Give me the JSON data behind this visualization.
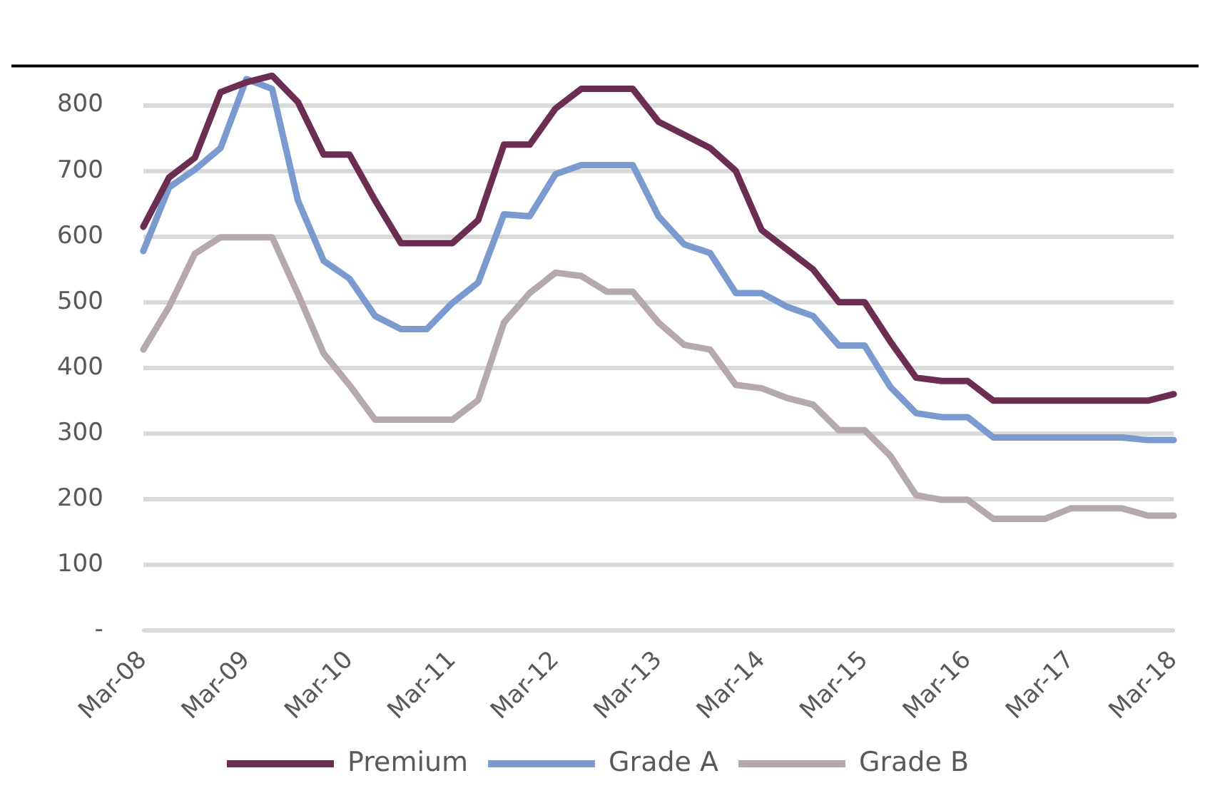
{
  "chart_data": {
    "type": "line",
    "categories": [
      "Mar-08",
      null,
      null,
      null,
      "Mar-09",
      null,
      null,
      null,
      "Mar-10",
      null,
      null,
      null,
      "Mar-11",
      null,
      null,
      null,
      "Mar-12",
      null,
      null,
      null,
      "Mar-13",
      null,
      null,
      null,
      "Mar-14",
      null,
      null,
      null,
      "Mar-15",
      null,
      null,
      null,
      "Mar-16",
      null,
      null,
      null,
      "Mar-17",
      null,
      null,
      null,
      "Mar-18"
    ],
    "series": [
      {
        "name": "Premium",
        "color": "#6b2d52",
        "values": [
          615,
          690,
          720,
          820,
          835,
          845,
          805,
          725,
          725,
          655,
          590,
          590,
          590,
          625,
          740,
          740,
          795,
          825,
          825,
          825,
          775,
          755,
          735,
          700,
          610,
          580,
          550,
          500,
          500,
          440,
          385,
          380,
          380,
          350,
          350,
          350,
          350,
          350,
          350,
          350,
          360
        ]
      },
      {
        "name": "Grade A",
        "color": "#7b9bd0",
        "values": [
          578,
          675,
          702,
          735,
          840,
          825,
          655,
          563,
          536,
          479,
          459,
          459,
          499,
          530,
          634,
          631,
          695,
          709,
          709,
          709,
          631,
          588,
          575,
          514,
          514,
          493,
          479,
          434,
          434,
          371,
          331,
          325,
          325,
          294,
          294,
          294,
          294,
          294,
          294,
          290,
          290
        ]
      },
      {
        "name": "Grade B",
        "color": "#b5a9ae",
        "values": [
          428,
          493,
          574,
          599,
          599,
          599,
          513,
          422,
          374,
          321,
          321,
          321,
          321,
          351,
          469,
          514,
          545,
          540,
          516,
          516,
          469,
          435,
          428,
          374,
          369,
          354,
          344,
          305,
          305,
          266,
          206,
          199,
          199,
          170,
          170,
          170,
          186,
          186,
          186,
          175,
          175
        ]
      }
    ],
    "ylim": [
      0,
      860
    ],
    "yticks": [
      {
        "value": 0,
        "label": "-"
      },
      100,
      200,
      300,
      400,
      500,
      600,
      700,
      800
    ],
    "grid": "y",
    "legend": "bottom",
    "marker": "none",
    "line_style": "solid"
  }
}
